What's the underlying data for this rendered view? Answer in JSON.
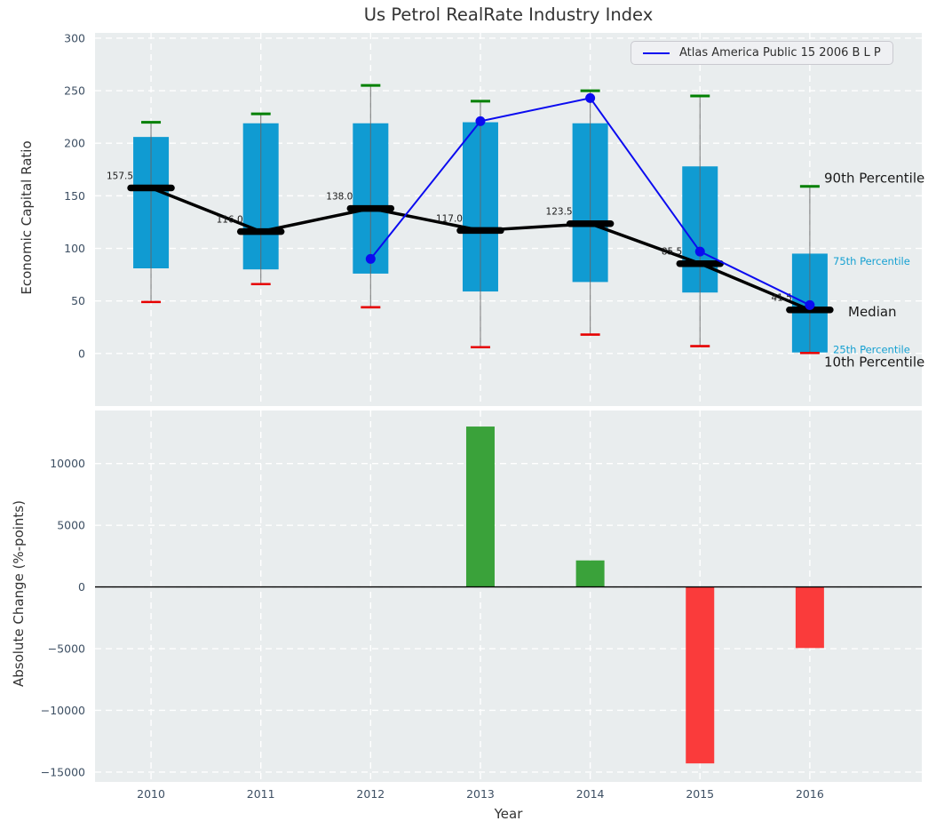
{
  "figure": {
    "title": "Us Petrol RealRate Industry Index",
    "axes_background": "#e9edee",
    "grid_color": "#ffffff",
    "tick_color": "#3d4f63",
    "label_color": "#333333"
  },
  "legend": {
    "label": "Atlas America Public 15 2006 B L P",
    "line_color": "#0b0bf0",
    "position": "upper right"
  },
  "top_panel": {
    "ylabel": "Economic Capital Ratio"
  },
  "bottom_panel": {
    "ylabel": "Absolute Change (%-points)",
    "xlabel": "Year"
  },
  "chart_data": [
    {
      "type": "percentile_box_timeseries",
      "title": "Us Petrol RealRate Industry Index",
      "ylabel": "Economic Capital Ratio",
      "categories": [
        2010,
        2011,
        2012,
        2013,
        2014,
        2015,
        2016
      ],
      "series": [
        {
          "name": "10th Percentile",
          "values": [
            49,
            66,
            44,
            6,
            18,
            7,
            0.5
          ]
        },
        {
          "name": "25th Percentile",
          "values": [
            81,
            80,
            76,
            59,
            68,
            58,
            1
          ]
        },
        {
          "name": "Median",
          "values": [
            157.5,
            116.0,
            138.0,
            117.0,
            123.5,
            85.5,
            41.5
          ]
        },
        {
          "name": "75th Percentile",
          "values": [
            206,
            219,
            219,
            220,
            219,
            178,
            95
          ]
        },
        {
          "name": "90th Percentile",
          "values": [
            220,
            228,
            255,
            240,
            250,
            245,
            159
          ]
        }
      ],
      "median_labels": [
        "157.5",
        "116.0",
        "138.0",
        "117.0",
        "123.5",
        "85.5",
        "41.5"
      ],
      "overlay_line": {
        "name": "Atlas America Public 15 2006 B L P",
        "x": [
          2012,
          2013,
          2014,
          2015,
          2016
        ],
        "values": [
          90,
          221,
          243,
          97,
          46
        ]
      },
      "yticks": [
        0,
        50,
        100,
        150,
        200,
        250,
        300
      ],
      "ylim": [
        -50,
        305
      ],
      "xlim": [
        2009.49,
        2017.02
      ],
      "grid": true,
      "colors": {
        "box": "#109bd2",
        "p90_cap": "#008000",
        "p10_cap": "#e60000",
        "median": "#000000",
        "whisker": "#666666",
        "overlay": "#0b0bf0",
        "annotation": "#1a1a1a"
      },
      "right_labels": [
        {
          "text": "90th Percentile",
          "color": "#1a1a1a",
          "size": 15,
          "y_value": 167,
          "x": 928
        },
        {
          "text": "75th Percentile",
          "color": "#16a1d2",
          "size": 11.5,
          "y_value": 88,
          "x": 938
        },
        {
          "text": "Median",
          "color": "#1a1a1a",
          "size": 15,
          "y_value": 40,
          "x": 955
        },
        {
          "text": "25th Percentile",
          "color": "#16a1d2",
          "size": 11.5,
          "y_value": 4,
          "x": 938
        },
        {
          "text": "10th Percentile",
          "color": "#1a1a1a",
          "size": 15,
          "y_value": -8,
          "x": 928
        }
      ]
    },
    {
      "type": "bar",
      "ylabel": "Absolute Change (%-points)",
      "xlabel": "Year",
      "categories": [
        2010,
        2011,
        2012,
        2013,
        2014,
        2015,
        2016
      ],
      "values": [
        null,
        null,
        null,
        13000,
        2150,
        -14300,
        -4950
      ],
      "yticks": [
        10000,
        5000,
        0,
        -5000,
        -10000,
        -15000
      ],
      "ytick_labels": [
        "10000",
        "5000",
        "0",
        "−5000",
        "−10000",
        "−15000"
      ],
      "xtick_labels": [
        "2010",
        "2011",
        "2012",
        "2013",
        "2014",
        "2015",
        "2016"
      ],
      "ylim": [
        -15800,
        14300
      ],
      "xlim": [
        2009.49,
        2017.02
      ],
      "grid": true,
      "positive_color": "#3aa23a",
      "negative_color": "#fa3b3b",
      "zero_line_color": "#000000"
    }
  ]
}
